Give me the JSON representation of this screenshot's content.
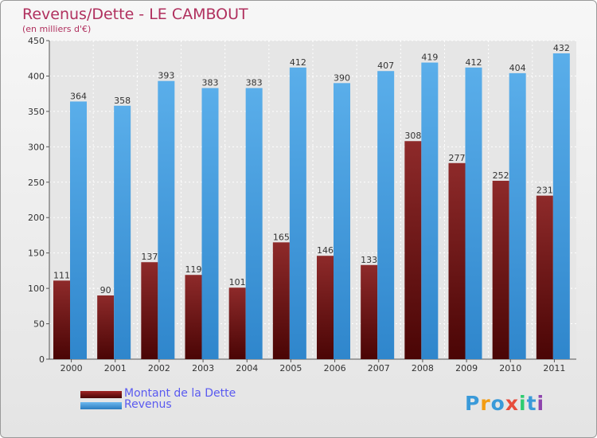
{
  "title": "Revenus/Dette - LE CAMBOUT",
  "subtitle": "(en milliers d'€)",
  "colors": {
    "dette": "#7a1c1c",
    "revenus": "#4fa3e3",
    "title": "#b0305e",
    "legend_text": "#5a5af0"
  },
  "chart_data": {
    "type": "bar",
    "categories": [
      "2000",
      "2001",
      "2002",
      "2003",
      "2004",
      "2005",
      "2006",
      "2007",
      "2008",
      "2009",
      "2010",
      "2011"
    ],
    "series": [
      {
        "name": "Montant de la Dette",
        "values": [
          111,
          90,
          137,
          119,
          101,
          165,
          146,
          133,
          308,
          277,
          252,
          231
        ]
      },
      {
        "name": "Revenus",
        "values": [
          364,
          358,
          393,
          383,
          383,
          412,
          390,
          407,
          419,
          412,
          404,
          432
        ]
      }
    ],
    "ylim": [
      0,
      450
    ],
    "yticks": [
      0,
      50,
      100,
      150,
      200,
      250,
      300,
      350,
      400,
      450
    ],
    "grid": true,
    "legend": "bottom-left"
  },
  "legend": {
    "dette_label": "Montant de la Dette",
    "revenus_label": "Revenus"
  },
  "logo": {
    "letters": [
      "P",
      "r",
      "o",
      "x",
      "i",
      "t",
      "i"
    ],
    "colors": [
      "#3a9ad9",
      "#f39c12",
      "#3a9ad9",
      "#e74c3c",
      "#2ecc71",
      "#3a9ad9",
      "#8e44ad"
    ]
  }
}
